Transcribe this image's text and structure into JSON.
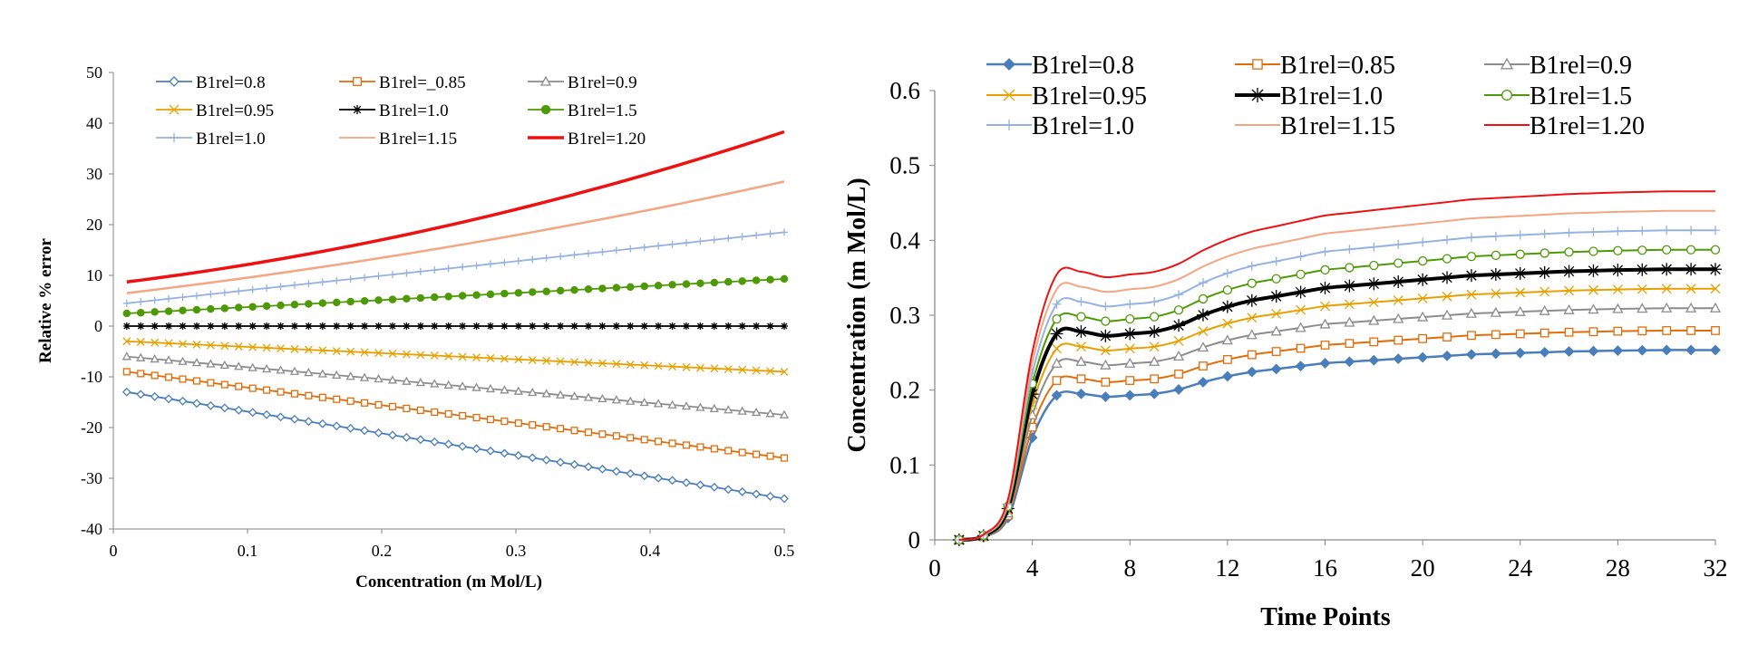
{
  "chart_data": [
    {
      "type": "line",
      "xlabel": "Concentration (m Mol/L)",
      "ylabel": "Relative % error",
      "xlim": [
        0,
        0.5
      ],
      "ylim": [
        -40,
        50
      ],
      "x_ticks": [
        "0",
        "0.1",
        "0.2",
        "0.3",
        "0.4",
        "0.5"
      ],
      "y_ticks": [
        "50",
        "40",
        "30",
        "20",
        "10",
        "0",
        "-10",
        "-20",
        "-30",
        "-40"
      ],
      "x_range": [
        0.01,
        0.5
      ],
      "point_count": 48,
      "legend_position": "top",
      "series": [
        {
          "name": "B1rel=0.8",
          "start": -13,
          "end": -34,
          "color": "#4a7ebb",
          "marker": "diamond-open"
        },
        {
          "name": "B1rel=_0.85",
          "start": -9,
          "end": -26,
          "color": "#e36c09",
          "marker": "square-open"
        },
        {
          "name": "B1rel=0.9",
          "start": -6,
          "end": -17.5,
          "color": "#8c8c8c",
          "marker": "triangle-open"
        },
        {
          "name": "B1rel=0.95",
          "start": -3,
          "end": -9,
          "color": "#e8a000",
          "marker": "x"
        },
        {
          "name": "B1rel=1.0",
          "start": 0,
          "end": 0,
          "color": "#000000",
          "marker": "star"
        },
        {
          "name": "B1rel=1.5",
          "start": 2.5,
          "end": 9.3,
          "color": "#4e9a06",
          "marker": "circle-filled"
        },
        {
          "name": "B1rel=1.0",
          "start": 4.5,
          "end": 18.5,
          "color": "#95b3e0",
          "marker": "plus"
        },
        {
          "name": "B1rel=1.15",
          "start": 6.5,
          "end": 28.5,
          "color": "#f4a582",
          "marker": "none"
        },
        {
          "name": "B1rel=1.20",
          "start": 8.7,
          "end": 38.3,
          "color": "#ee1111",
          "marker": "none"
        }
      ]
    },
    {
      "type": "line",
      "xlabel": "Time Points",
      "ylabel": "Concentration (m Mol/L)",
      "xlim": [
        0,
        32
      ],
      "ylim": [
        0,
        0.6
      ],
      "x_ticks": [
        "0",
        "4",
        "8",
        "12",
        "16",
        "20",
        "24",
        "28",
        "32"
      ],
      "y_ticks": [
        "0.6",
        "0.5",
        "0.4",
        "0.3",
        "0.2",
        "0.1",
        "0"
      ],
      "x": [
        1,
        2,
        3,
        4,
        5,
        6,
        7,
        8,
        9,
        10,
        11,
        12,
        13,
        14,
        15,
        16,
        17,
        18,
        19,
        20,
        21,
        22,
        23,
        24,
        25,
        26,
        27,
        28,
        29,
        30,
        31,
        32
      ],
      "base_shape": [
        0,
        0.02,
        0.15,
        0.7,
        0.99,
        1.0,
        0.98,
        0.99,
        1.0,
        1.03,
        1.08,
        1.12,
        1.15,
        1.17,
        1.19,
        1.21,
        1.22,
        1.23,
        1.24,
        1.25,
        1.26,
        1.27,
        1.275,
        1.28,
        1.285,
        1.29,
        1.293,
        1.296,
        1.298,
        1.3,
        1.3,
        1.3
      ],
      "legend_position": "top",
      "series": [
        {
          "name": "B1rel=0.8",
          "plateau": 0.195,
          "color": "#4a7ebb",
          "marker": "diamond-filled",
          "lw": 2.5
        },
        {
          "name": "B1rel=0.85",
          "plateau": 0.215,
          "color": "#e36c09",
          "marker": "square-open",
          "lw": 2
        },
        {
          "name": "B1rel=0.9",
          "plateau": 0.238,
          "color": "#8c8c8c",
          "marker": "triangle-open",
          "lw": 2
        },
        {
          "name": "B1rel=0.95",
          "plateau": 0.258,
          "color": "#e8a000",
          "marker": "x",
          "lw": 2
        },
        {
          "name": "B1rel=1.0",
          "plateau": 0.278,
          "color": "#000000",
          "marker": "star",
          "lw": 4
        },
        {
          "name": "B1rel=1.5",
          "plateau": 0.298,
          "color": "#4e9a06",
          "marker": "circle-open",
          "lw": 2
        },
        {
          "name": "B1rel=1.0",
          "plateau": 0.318,
          "color": "#95b3e0",
          "marker": "plus",
          "lw": 2
        },
        {
          "name": "B1rel=1.15",
          "plateau": 0.338,
          "color": "#f4a582",
          "marker": "none",
          "lw": 2
        },
        {
          "name": "B1rel=1.20",
          "plateau": 0.358,
          "color": "#ee1111",
          "marker": "none",
          "lw": 2
        }
      ]
    }
  ]
}
